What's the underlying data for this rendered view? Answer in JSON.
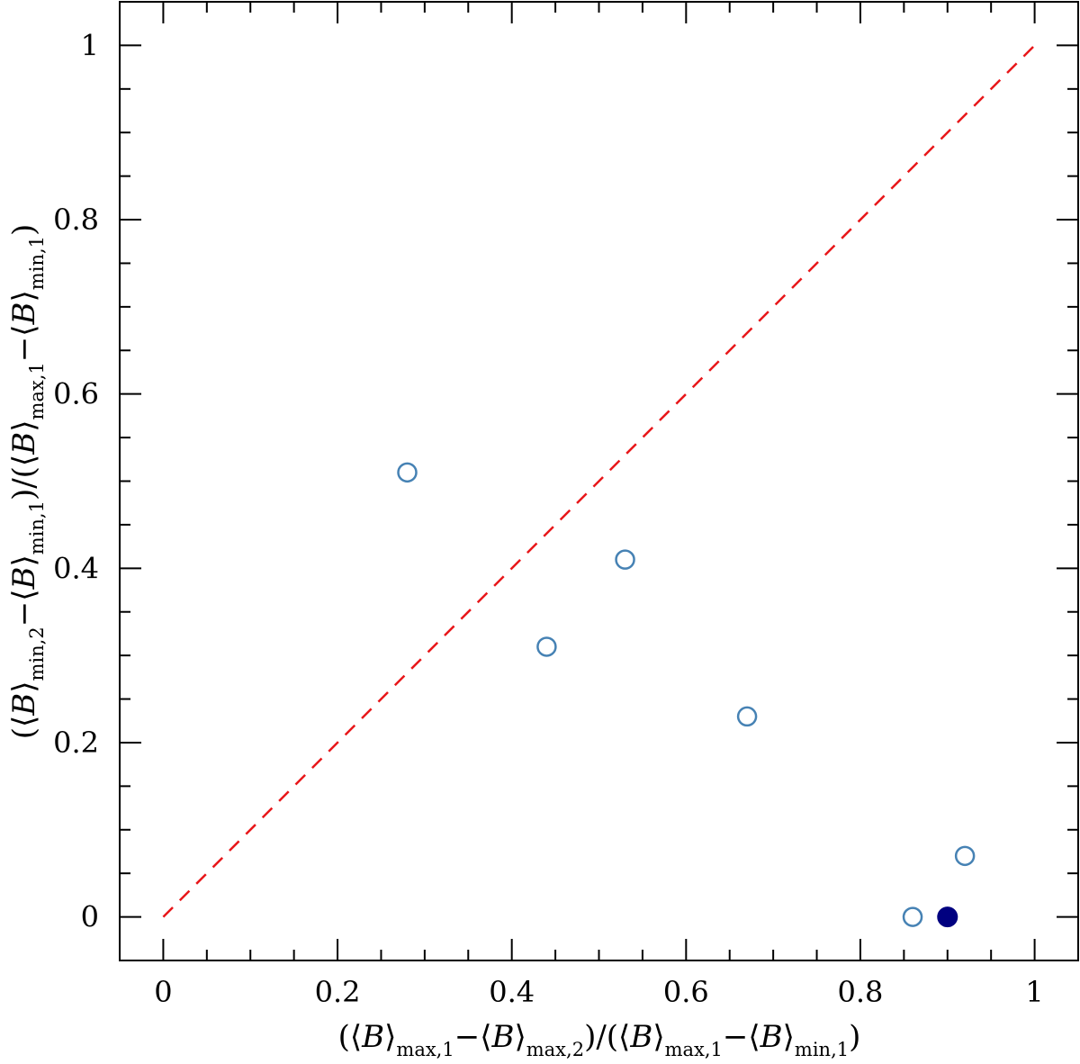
{
  "chart_data": {
    "type": "scatter",
    "title": "",
    "xlabel": "(⟨B⟩max,1−⟨B⟩max,2)/(⟨B⟩max,1−⟨B⟩min,1)",
    "ylabel": "(⟨B⟩min,2−⟨B⟩min,1)/(⟨B⟩max,1−⟨B⟩min,1)",
    "xlim": [
      -0.05,
      1.05
    ],
    "ylim": [
      -0.05,
      1.05
    ],
    "x_ticks": [
      0,
      0.2,
      0.4,
      0.6,
      0.8,
      1
    ],
    "y_ticks": [
      0,
      0.2,
      0.4,
      0.6,
      0.8,
      1
    ],
    "x_tick_labels": [
      "0",
      "0.2",
      "0.4",
      "0.6",
      "0.8",
      "1"
    ],
    "y_tick_labels": [
      "0",
      "0.2",
      "0.4",
      "0.6",
      "0.8",
      "1"
    ],
    "grid": false,
    "series": [
      {
        "marker": "open-circle",
        "color": "#4682b4",
        "points": [
          {
            "x": 0.28,
            "y": 0.51
          },
          {
            "x": 0.44,
            "y": 0.31
          },
          {
            "x": 0.53,
            "y": 0.41
          },
          {
            "x": 0.67,
            "y": 0.23
          },
          {
            "x": 0.86,
            "y": 0.0
          },
          {
            "x": 0.92,
            "y": 0.07
          }
        ]
      },
      {
        "marker": "filled-circle",
        "color": "#000080",
        "points": [
          {
            "x": 0.9,
            "y": 0.0
          }
        ]
      }
    ],
    "reference_line": {
      "style": "dashed",
      "color": "#e8171a",
      "from": {
        "x": 0,
        "y": 0
      },
      "to": {
        "x": 1,
        "y": 1
      }
    }
  }
}
